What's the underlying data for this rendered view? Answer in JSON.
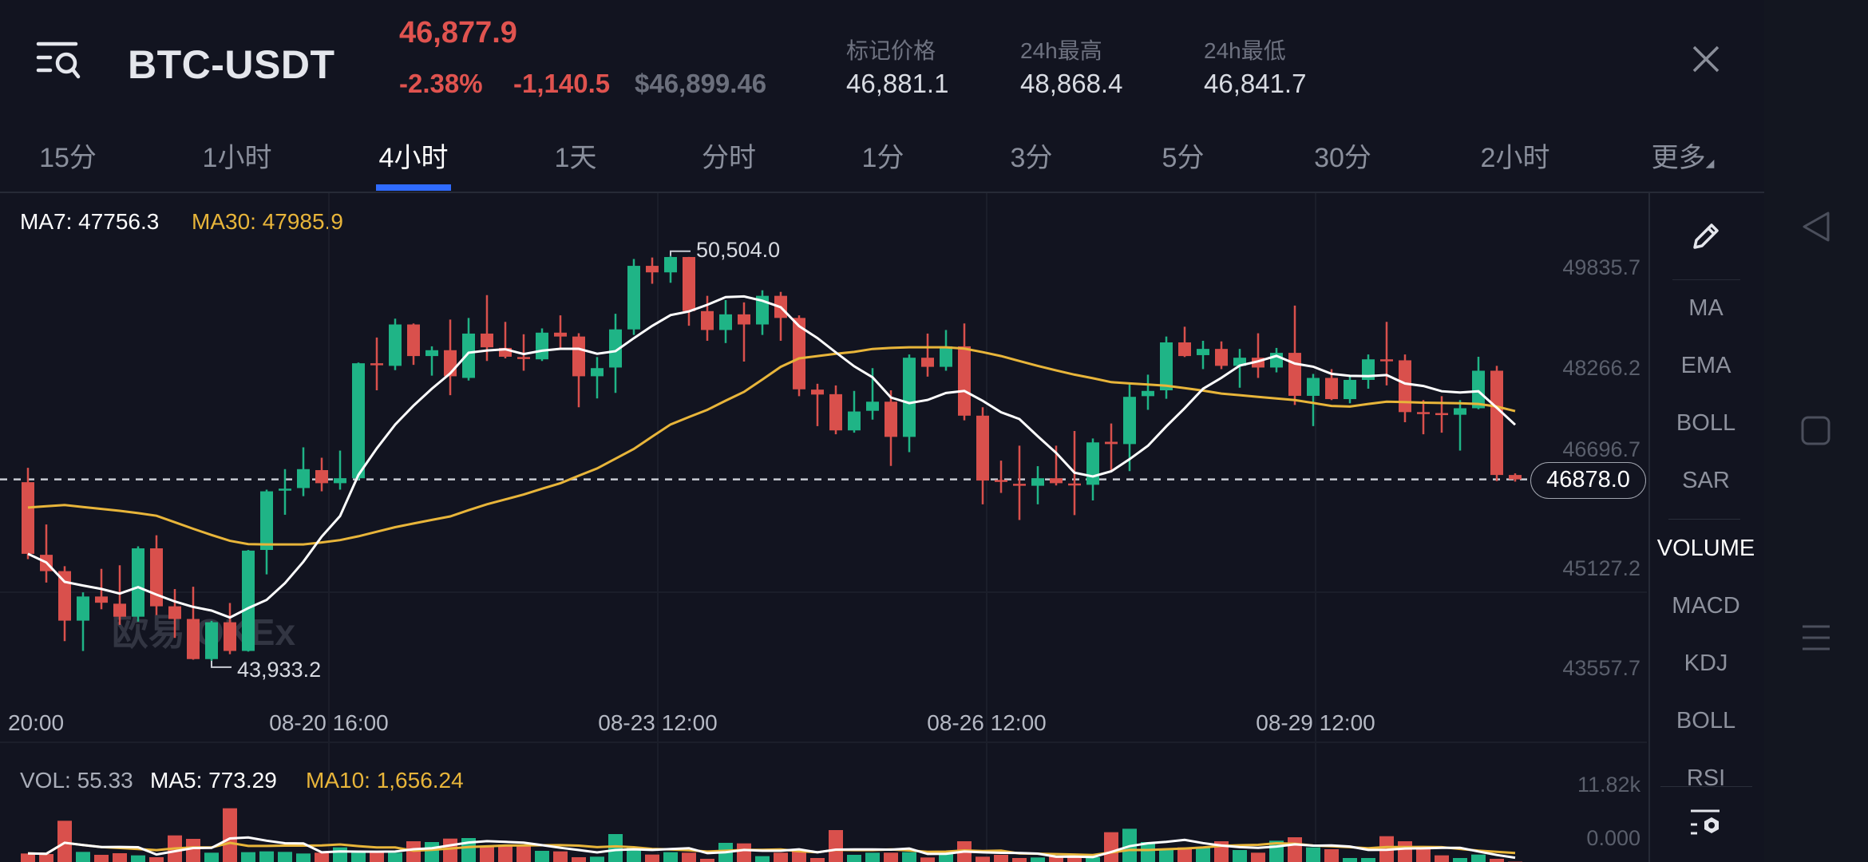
{
  "header": {
    "pair": "BTC-USDT",
    "last_price": "46,877.9",
    "change_pct": "-2.38%",
    "change_abs": "-1,140.5",
    "usd_price": "$46,899.46",
    "stats": [
      {
        "label": "标记价格",
        "value": "46,881.1"
      },
      {
        "label": "24h最高",
        "value": "48,868.4"
      },
      {
        "label": "24h最低",
        "value": "46,841.7"
      }
    ],
    "menu_icon": "menu-search-icon",
    "close_icon": "close-icon"
  },
  "tabs": [
    "15分",
    "1小时",
    "4小时",
    "1天",
    "分时",
    "1分",
    "3分",
    "5分",
    "30分",
    "2小时",
    "更多"
  ],
  "active_tab": "4小时",
  "indicators": {
    "edit_icon": "pencil-icon",
    "main": [
      "MA",
      "EMA",
      "BOLL",
      "SAR"
    ],
    "sub": [
      "VOLUME",
      "MACD",
      "KDJ",
      "BOLL",
      "RSI"
    ],
    "active_sub": "VOLUME",
    "settings_icon": "indicator-settings-icon"
  },
  "nav": [
    "back-icon",
    "recents-icon",
    "menu-icon"
  ],
  "colors": {
    "up": "#1fb486",
    "down": "#d9504c",
    "ma7": "#ffffff",
    "ma30": "#e8b53a",
    "accent": "#2f6bff",
    "background": "#121420"
  },
  "watermark": "欧易 OKEx",
  "chart_data": {
    "type": "candlestick",
    "interval": "4小时",
    "legend": {
      "ma7": "MA7: 47756.3",
      "ma30": "MA30: 47985.9"
    },
    "y_ticks": [
      "49835.7",
      "48266.2",
      "46696.7",
      "45127.2",
      "43557.7"
    ],
    "x_ticks": [
      "20:00",
      "08-20 16:00",
      "08-23 12:00",
      "08-26 12:00",
      "08-29 12:00"
    ],
    "current_price": "46878.0",
    "high_label": "50,504.0",
    "low_label": "43,933.2",
    "ylim": [
      43257,
      51551
    ],
    "grid": false,
    "candles_ohlc": [
      [
        46832,
        47065,
        45584,
        45669
      ],
      [
        45653,
        46145,
        45203,
        45388
      ],
      [
        45388,
        45468,
        44251,
        44584
      ],
      [
        44584,
        45044,
        44092,
        44976
      ],
      [
        44976,
        45425,
        44769,
        44875
      ],
      [
        44859,
        45483,
        44515,
        44648
      ],
      [
        44648,
        45790,
        44568,
        45758
      ],
      [
        45758,
        45970,
        44674,
        44817
      ],
      [
        44817,
        45097,
        44304,
        44611
      ],
      [
        44611,
        45134,
        43950,
        43960
      ],
      [
        43960,
        44580,
        43933.2,
        44558
      ],
      [
        44558,
        44870,
        44039,
        44092
      ],
      [
        44092,
        45732,
        44082,
        45721
      ],
      [
        45732,
        46711,
        45335,
        46684
      ],
      [
        46700,
        47044,
        46303,
        46727
      ],
      [
        46737,
        47398,
        46605,
        47044
      ],
      [
        47028,
        47229,
        46684,
        46816
      ],
      [
        46816,
        47345,
        46711,
        46896
      ],
      [
        46896,
        48774,
        46869,
        48763
      ],
      [
        48763,
        49181,
        48324,
        48731
      ],
      [
        48721,
        49488,
        48652,
        49393
      ],
      [
        49393,
        49409,
        48737,
        48880
      ],
      [
        48880,
        49038,
        48562,
        48975
      ],
      [
        48975,
        49472,
        48245,
        48552
      ],
      [
        48525,
        49499,
        48483,
        49245
      ],
      [
        49245,
        49869,
        48800,
        49022
      ],
      [
        49012,
        49435,
        48843,
        48869
      ],
      [
        48864,
        49234,
        48642,
        48843
      ],
      [
        48827,
        49329,
        48800,
        49260
      ],
      [
        49260,
        49541,
        48985,
        49197
      ],
      [
        49197,
        49250,
        48049,
        48552
      ],
      [
        48552,
        48864,
        48192,
        48684
      ],
      [
        48694,
        49567,
        48282,
        49313
      ],
      [
        49313,
        50456,
        49223,
        50345
      ],
      [
        50345,
        50480,
        50054,
        50239
      ],
      [
        50239,
        50504,
        50070,
        50488
      ],
      [
        50488,
        50490,
        49372,
        49610
      ],
      [
        49610,
        49858,
        49128,
        49303
      ],
      [
        49303,
        49789,
        49091,
        49557
      ],
      [
        49557,
        49752,
        48790,
        49393
      ],
      [
        49393,
        49948,
        49223,
        49858
      ],
      [
        49858,
        49922,
        49128,
        49499
      ],
      [
        49499,
        49541,
        48229,
        48340
      ],
      [
        48335,
        48430,
        47742,
        48255
      ],
      [
        48261,
        48403,
        47610,
        47673
      ],
      [
        47673,
        48314,
        47636,
        47980
      ],
      [
        47991,
        48684,
        47848,
        48139
      ],
      [
        48139,
        48324,
        47097,
        47568
      ],
      [
        47568,
        48906,
        47319,
        48853
      ],
      [
        48853,
        49245,
        48546,
        48705
      ],
      [
        48705,
        49303,
        48642,
        49038
      ],
      [
        49038,
        49409,
        47837,
        47912
      ],
      [
        47912,
        48049,
        46473,
        46859
      ],
      [
        46869,
        47182,
        46658,
        46843
      ],
      [
        46806,
        47425,
        46219,
        46790
      ],
      [
        46774,
        47092,
        46473,
        46896
      ],
      [
        46896,
        47425,
        46779,
        46816
      ],
      [
        46811,
        47663,
        46298,
        46790
      ],
      [
        46790,
        47541,
        46536,
        47478
      ],
      [
        47488,
        47785,
        47002,
        47451
      ],
      [
        47451,
        48419,
        47012,
        48218
      ],
      [
        48229,
        48578,
        48007,
        48314
      ],
      [
        48324,
        49197,
        48187,
        49102
      ],
      [
        49102,
        49356,
        48864,
        48880
      ],
      [
        48895,
        49128,
        48668,
        48996
      ],
      [
        48996,
        49118,
        48668,
        48721
      ],
      [
        48721,
        48996,
        48366,
        48853
      ],
      [
        48853,
        49250,
        48525,
        48694
      ],
      [
        48694,
        49012,
        48615,
        48932
      ],
      [
        48932,
        49700,
        48086,
        48234
      ],
      [
        48234,
        48589,
        47742,
        48525
      ],
      [
        48525,
        48668,
        48165,
        48181
      ],
      [
        48181,
        48546,
        48113,
        48493
      ],
      [
        48493,
        48906,
        48350,
        48827
      ],
      [
        48827,
        49435,
        48403,
        48811
      ],
      [
        48811,
        48906,
        47806,
        47970
      ],
      [
        47970,
        48165,
        47610,
        47954
      ],
      [
        47954,
        48229,
        47636,
        47927
      ],
      [
        47927,
        48165,
        47345,
        48033
      ],
      [
        48033,
        48868.4,
        48017,
        48642
      ],
      [
        48642,
        48721,
        46850,
        46949
      ],
      [
        46949,
        46975,
        46841.7,
        46877.9
      ]
    ],
    "ma30": [
      46420,
      46441,
      46462,
      46430,
      46399,
      46367,
      46330,
      46287,
      46182,
      46076,
      45975,
      45880,
      45827,
      45822,
      45822,
      45822,
      45854,
      45891,
      45954,
      46028,
      46102,
      46161,
      46219,
      46277,
      46377,
      46473,
      46552,
      46631,
      46726,
      46816,
      46938,
      47055,
      47213,
      47372,
      47573,
      47769,
      47890,
      48007,
      48155,
      48298,
      48499,
      48705,
      48843,
      48880,
      48917,
      48948,
      48996,
      49012,
      49022,
      49022,
      49022,
      49001,
      48943,
      48880,
      48800,
      48721,
      48647,
      48578,
      48520,
      48456,
      48435,
      48419,
      48398,
      48361,
      48319,
      48271,
      48245,
      48218,
      48192,
      48165,
      48118,
      48070,
      48060,
      48102,
      48139,
      48134,
      48123,
      48118,
      48113,
      48102,
      48060,
      47985.9
    ],
    "volume": {
      "legend": {
        "vol": "VOL: 55.33",
        "ma5": "MA5: 773.29",
        "ma10": "MA10: 1,656.24"
      },
      "y_ticks": [
        "11.82k",
        "0.000"
      ],
      "ylim": [
        0,
        11820
      ],
      "values": [
        1286,
        1206,
        6231,
        1528,
        1085,
        1327,
        1005,
        724,
        4020,
        3497,
        1407,
        8120,
        1487,
        1608,
        1528,
        1286,
        1407,
        2211,
        1407,
        1487,
        1407,
        3136,
        3015,
        3538,
        3618,
        2412,
        2613,
        2412,
        1688,
        1608,
        724,
        804,
        4221,
        2211,
        1126,
        1487,
        1407,
        482,
        2894,
        2814,
        884,
        1407,
        1608,
        603,
        4824,
        1085,
        1407,
        1407,
        1487,
        683,
        1206,
        3136,
        804,
        1085,
        603,
        683,
        804,
        884,
        724,
        4502,
        5025,
        3015,
        1930,
        2211,
        2131,
        3136,
        1809,
        1407,
        3216,
        3739,
        2211,
        1930,
        603,
        603,
        3899,
        3136,
        2090,
        1005,
        603,
        1126,
        482,
        55.33
      ]
    }
  }
}
